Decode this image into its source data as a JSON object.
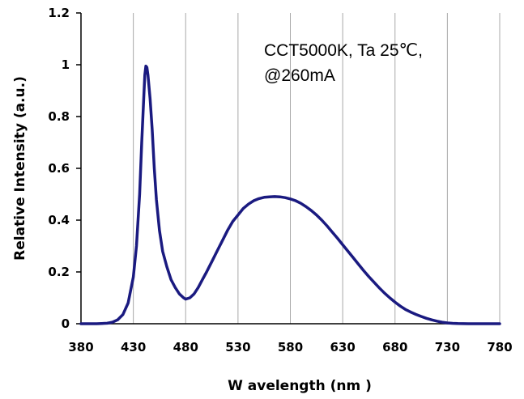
{
  "chart_data": {
    "type": "line",
    "annotation": [
      "CCT5000K, Ta 25℃,",
      "@260mA"
    ],
    "xlabel": "W avelength (nm )",
    "ylabel": "Relative Intensity (a.u.)",
    "xlim": [
      380,
      780
    ],
    "ylim": [
      0,
      1.2
    ],
    "x_ticks": [
      380,
      430,
      480,
      530,
      580,
      630,
      680,
      730,
      780
    ],
    "x_tick_labels": [
      "380",
      "430",
      "480",
      "530",
      "580",
      "630",
      "680",
      "730",
      "780"
    ],
    "y_ticks": [
      0,
      0.2,
      0.4,
      0.6,
      0.8,
      1.0,
      1.2
    ],
    "y_tick_labels": [
      "0",
      "0.2",
      "0.4",
      "0.6",
      "0.8",
      "1",
      "1.2"
    ],
    "grid": {
      "vertical": true,
      "horizontal": false
    },
    "line_color": "#1a1a80",
    "series": [
      {
        "x": [
          380,
          395,
          405,
          410,
          415,
          420,
          425,
          430,
          433,
          436,
          438,
          440,
          441,
          442,
          443,
          444,
          446,
          448,
          450,
          452,
          455,
          458,
          462,
          466,
          470,
          474,
          478,
          480,
          484,
          488,
          492,
          496,
          500,
          505,
          510,
          515,
          520,
          525,
          530,
          535,
          540,
          545,
          550,
          555,
          560,
          565,
          570,
          575,
          580,
          585,
          590,
          595,
          600,
          605,
          610,
          615,
          620,
          625,
          630,
          635,
          640,
          645,
          650,
          655,
          660,
          665,
          670,
          675,
          680,
          685,
          690,
          695,
          700,
          705,
          710,
          715,
          720,
          725,
          730,
          735,
          740,
          745,
          750,
          755,
          760,
          770,
          780
        ],
        "y": [
          0,
          0,
          0.002,
          0.006,
          0.015,
          0.035,
          0.08,
          0.18,
          0.3,
          0.5,
          0.7,
          0.88,
          0.96,
          0.995,
          0.99,
          0.96,
          0.87,
          0.75,
          0.6,
          0.48,
          0.36,
          0.28,
          0.22,
          0.17,
          0.14,
          0.115,
          0.1,
          0.095,
          0.1,
          0.115,
          0.14,
          0.17,
          0.2,
          0.24,
          0.28,
          0.32,
          0.36,
          0.395,
          0.42,
          0.445,
          0.462,
          0.475,
          0.483,
          0.488,
          0.49,
          0.491,
          0.49,
          0.487,
          0.482,
          0.475,
          0.465,
          0.452,
          0.437,
          0.42,
          0.4,
          0.378,
          0.354,
          0.33,
          0.305,
          0.28,
          0.255,
          0.23,
          0.205,
          0.182,
          0.16,
          0.138,
          0.118,
          0.1,
          0.083,
          0.068,
          0.055,
          0.045,
          0.036,
          0.028,
          0.021,
          0.015,
          0.01,
          0.006,
          0.003,
          0.0015,
          0.0007,
          0.0003,
          0.0001,
          0,
          0,
          0,
          0
        ]
      }
    ]
  }
}
